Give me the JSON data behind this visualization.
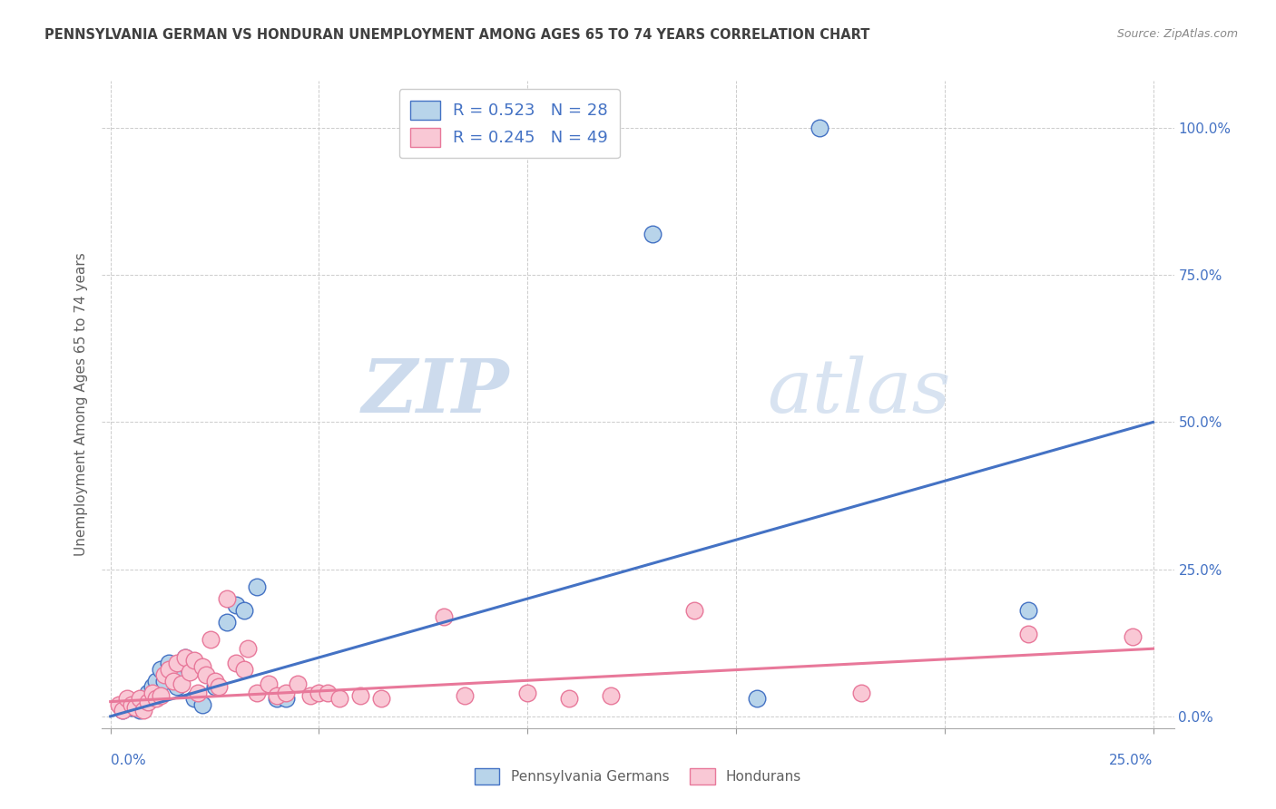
{
  "title": "PENNSYLVANIA GERMAN VS HONDURAN UNEMPLOYMENT AMONG AGES 65 TO 74 YEARS CORRELATION CHART",
  "source": "Source: ZipAtlas.com",
  "ylabel": "Unemployment Among Ages 65 to 74 years",
  "ytick_labels": [
    "0.0%",
    "25.0%",
    "50.0%",
    "75.0%",
    "100.0%"
  ],
  "ytick_values": [
    0.0,
    0.25,
    0.5,
    0.75,
    1.0
  ],
  "xtick_labels": [
    "0.0%",
    "25.0%"
  ],
  "xtick_values": [
    0.0,
    0.25
  ],
  "xlim": [
    -0.002,
    0.255
  ],
  "ylim": [
    -0.02,
    1.08
  ],
  "legend_label1": "R = 0.523   N = 28",
  "legend_label2": "R = 0.245   N = 49",
  "legend_color1": "#b8d4ea",
  "legend_color2": "#f9c8d5",
  "watermark_zip": "ZIP",
  "watermark_atlas": "atlas",
  "blue_color": "#4472c4",
  "pink_color": "#e8789a",
  "blue_scatter": [
    [
      0.003,
      0.01
    ],
    [
      0.005,
      0.015
    ],
    [
      0.006,
      0.02
    ],
    [
      0.007,
      0.01
    ],
    [
      0.008,
      0.03
    ],
    [
      0.009,
      0.04
    ],
    [
      0.01,
      0.05
    ],
    [
      0.011,
      0.06
    ],
    [
      0.012,
      0.08
    ],
    [
      0.013,
      0.06
    ],
    [
      0.014,
      0.09
    ],
    [
      0.015,
      0.07
    ],
    [
      0.016,
      0.05
    ],
    [
      0.018,
      0.1
    ],
    [
      0.019,
      0.08
    ],
    [
      0.02,
      0.03
    ],
    [
      0.022,
      0.02
    ],
    [
      0.025,
      0.05
    ],
    [
      0.028,
      0.16
    ],
    [
      0.03,
      0.19
    ],
    [
      0.032,
      0.18
    ],
    [
      0.035,
      0.22
    ],
    [
      0.04,
      0.03
    ],
    [
      0.042,
      0.03
    ],
    [
      0.13,
      0.82
    ],
    [
      0.155,
      0.03
    ],
    [
      0.17,
      1.0
    ],
    [
      0.22,
      0.18
    ]
  ],
  "pink_scatter": [
    [
      0.002,
      0.02
    ],
    [
      0.003,
      0.01
    ],
    [
      0.004,
      0.03
    ],
    [
      0.005,
      0.02
    ],
    [
      0.006,
      0.015
    ],
    [
      0.007,
      0.03
    ],
    [
      0.008,
      0.01
    ],
    [
      0.009,
      0.025
    ],
    [
      0.01,
      0.04
    ],
    [
      0.011,
      0.03
    ],
    [
      0.012,
      0.035
    ],
    [
      0.013,
      0.07
    ],
    [
      0.014,
      0.08
    ],
    [
      0.015,
      0.06
    ],
    [
      0.016,
      0.09
    ],
    [
      0.017,
      0.055
    ],
    [
      0.018,
      0.1
    ],
    [
      0.019,
      0.075
    ],
    [
      0.02,
      0.095
    ],
    [
      0.021,
      0.04
    ],
    [
      0.022,
      0.085
    ],
    [
      0.023,
      0.07
    ],
    [
      0.024,
      0.13
    ],
    [
      0.025,
      0.06
    ],
    [
      0.026,
      0.05
    ],
    [
      0.028,
      0.2
    ],
    [
      0.03,
      0.09
    ],
    [
      0.032,
      0.08
    ],
    [
      0.033,
      0.115
    ],
    [
      0.035,
      0.04
    ],
    [
      0.038,
      0.055
    ],
    [
      0.04,
      0.035
    ],
    [
      0.042,
      0.04
    ],
    [
      0.045,
      0.055
    ],
    [
      0.048,
      0.035
    ],
    [
      0.05,
      0.04
    ],
    [
      0.052,
      0.04
    ],
    [
      0.055,
      0.03
    ],
    [
      0.06,
      0.035
    ],
    [
      0.065,
      0.03
    ],
    [
      0.08,
      0.17
    ],
    [
      0.085,
      0.035
    ],
    [
      0.1,
      0.04
    ],
    [
      0.11,
      0.03
    ],
    [
      0.12,
      0.035
    ],
    [
      0.14,
      0.18
    ],
    [
      0.18,
      0.04
    ],
    [
      0.22,
      0.14
    ],
    [
      0.245,
      0.135
    ]
  ],
  "blue_line_x": [
    0.0,
    0.25
  ],
  "blue_line_y": [
    0.0,
    0.5
  ],
  "pink_line_x": [
    0.0,
    0.25
  ],
  "pink_line_y": [
    0.025,
    0.115
  ],
  "grid_color": "#cccccc",
  "background_color": "#ffffff",
  "title_color": "#404040",
  "axis_label_color": "#606060",
  "tick_label_color": "#4472c4",
  "source_color": "#888888"
}
